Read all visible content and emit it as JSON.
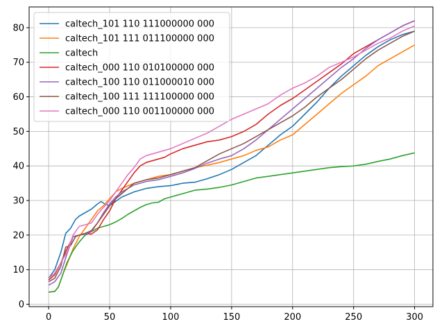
{
  "chart_data": {
    "type": "line",
    "title": "",
    "xlabel": "",
    "ylabel": "",
    "xlim": [
      -16,
      315
    ],
    "ylim": [
      -0.7,
      86
    ],
    "xticks": [
      0,
      50,
      100,
      150,
      200,
      250,
      300
    ],
    "yticks": [
      0,
      10,
      20,
      30,
      40,
      50,
      60,
      70,
      80
    ],
    "grid": true,
    "legend_position": "top-left",
    "series": [
      {
        "name": "caltech_101 110 111000000 000",
        "color": "#1f77b4",
        "points": [
          [
            0,
            7.5
          ],
          [
            5,
            10
          ],
          [
            10,
            15
          ],
          [
            14,
            20.5
          ],
          [
            18,
            22
          ],
          [
            22,
            24.5
          ],
          [
            25,
            25.5
          ],
          [
            30,
            26.5
          ],
          [
            35,
            27.5
          ],
          [
            40,
            29
          ],
          [
            43,
            29.7
          ],
          [
            46,
            29
          ],
          [
            50,
            28.5
          ],
          [
            60,
            31
          ],
          [
            70,
            32.5
          ],
          [
            80,
            33.5
          ],
          [
            90,
            34
          ],
          [
            100,
            34.3
          ],
          [
            110,
            35
          ],
          [
            120,
            35.3
          ],
          [
            130,
            36.3
          ],
          [
            140,
            37.5
          ],
          [
            150,
            39
          ],
          [
            160,
            41
          ],
          [
            170,
            43
          ],
          [
            180,
            46
          ],
          [
            190,
            49
          ],
          [
            200,
            51.5
          ],
          [
            210,
            55
          ],
          [
            220,
            58.5
          ],
          [
            230,
            62.5
          ],
          [
            240,
            66
          ],
          [
            250,
            69
          ],
          [
            260,
            72
          ],
          [
            270,
            74.5
          ],
          [
            280,
            76.5
          ],
          [
            290,
            78
          ],
          [
            300,
            79
          ]
        ]
      },
      {
        "name": "caltech_101 111 011100000 000",
        "color": "#ff7f0e",
        "points": [
          [
            0,
            3.5
          ],
          [
            5,
            3.7
          ],
          [
            8,
            5
          ],
          [
            12,
            9
          ],
          [
            15,
            11.5
          ],
          [
            20,
            16
          ],
          [
            25,
            19.5
          ],
          [
            30,
            22
          ],
          [
            35,
            24.5
          ],
          [
            40,
            27
          ],
          [
            45,
            28.5
          ],
          [
            50,
            30.5
          ],
          [
            55,
            32.5
          ],
          [
            60,
            33.5
          ],
          [
            70,
            35
          ],
          [
            80,
            36
          ],
          [
            90,
            37
          ],
          [
            100,
            37.5
          ],
          [
            110,
            38.5
          ],
          [
            120,
            39.5
          ],
          [
            130,
            40.2
          ],
          [
            140,
            41
          ],
          [
            150,
            42
          ],
          [
            160,
            43
          ],
          [
            170,
            44.5
          ],
          [
            180,
            45.5
          ],
          [
            190,
            47.5
          ],
          [
            200,
            49
          ],
          [
            210,
            52
          ],
          [
            220,
            55
          ],
          [
            230,
            58
          ],
          [
            240,
            61
          ],
          [
            250,
            63.5
          ],
          [
            260,
            66
          ],
          [
            270,
            69
          ],
          [
            280,
            71
          ],
          [
            290,
            73
          ],
          [
            300,
            75
          ]
        ]
      },
      {
        "name": "caltech",
        "color": "#2ca02c",
        "points": [
          [
            0,
            3.5
          ],
          [
            5,
            3.7
          ],
          [
            8,
            5
          ],
          [
            12,
            9
          ],
          [
            15,
            12
          ],
          [
            20,
            15.5
          ],
          [
            25,
            18
          ],
          [
            30,
            20
          ],
          [
            35,
            21
          ],
          [
            40,
            22
          ],
          [
            45,
            22.5
          ],
          [
            50,
            23
          ],
          [
            55,
            23.8
          ],
          [
            60,
            24.8
          ],
          [
            65,
            26
          ],
          [
            70,
            27
          ],
          [
            75,
            28
          ],
          [
            80,
            28.8
          ],
          [
            85,
            29.3
          ],
          [
            90,
            29.5
          ],
          [
            95,
            30.5
          ],
          [
            100,
            31
          ],
          [
            110,
            32
          ],
          [
            120,
            33
          ],
          [
            130,
            33.3
          ],
          [
            140,
            33.8
          ],
          [
            150,
            34.5
          ],
          [
            160,
            35.5
          ],
          [
            170,
            36.5
          ],
          [
            180,
            37
          ],
          [
            190,
            37.5
          ],
          [
            200,
            38
          ],
          [
            210,
            38.5
          ],
          [
            220,
            39
          ],
          [
            230,
            39.5
          ],
          [
            240,
            39.8
          ],
          [
            250,
            40
          ],
          [
            260,
            40.5
          ],
          [
            270,
            41.3
          ],
          [
            280,
            42
          ],
          [
            290,
            43
          ],
          [
            300,
            43.8
          ]
        ]
      },
      {
        "name": "caltech_000 110 010100000 000",
        "color": "#d62728",
        "points": [
          [
            0,
            7
          ],
          [
            5,
            8.5
          ],
          [
            10,
            12
          ],
          [
            15,
            16
          ],
          [
            20,
            19.5
          ],
          [
            25,
            20
          ],
          [
            30,
            20.5
          ],
          [
            35,
            20.3
          ],
          [
            40,
            21.5
          ],
          [
            45,
            24.5
          ],
          [
            50,
            27
          ],
          [
            55,
            30.5
          ],
          [
            60,
            33
          ],
          [
            65,
            35.5
          ],
          [
            70,
            38
          ],
          [
            75,
            40
          ],
          [
            80,
            41
          ],
          [
            85,
            41.5
          ],
          [
            90,
            42
          ],
          [
            95,
            42.5
          ],
          [
            100,
            43.5
          ],
          [
            110,
            45
          ],
          [
            120,
            46
          ],
          [
            130,
            47
          ],
          [
            140,
            47.5
          ],
          [
            150,
            48.5
          ],
          [
            160,
            50
          ],
          [
            170,
            52
          ],
          [
            180,
            55
          ],
          [
            190,
            57.5
          ],
          [
            200,
            59.5
          ],
          [
            210,
            62
          ],
          [
            220,
            64.5
          ],
          [
            230,
            67
          ],
          [
            240,
            69.5
          ],
          [
            250,
            72.5
          ],
          [
            260,
            74.5
          ],
          [
            270,
            76.5
          ],
          [
            280,
            78.5
          ],
          [
            290,
            80.5
          ],
          [
            300,
            82
          ]
        ]
      },
      {
        "name": "caltech_100 110 011000010 000",
        "color": "#9467bd",
        "points": [
          [
            0,
            5.5
          ],
          [
            5,
            6.5
          ],
          [
            10,
            9
          ],
          [
            15,
            14.5
          ],
          [
            20,
            19.5
          ],
          [
            25,
            20
          ],
          [
            30,
            20.3
          ],
          [
            35,
            21
          ],
          [
            40,
            23.5
          ],
          [
            45,
            26.5
          ],
          [
            50,
            29
          ],
          [
            55,
            31
          ],
          [
            60,
            32.5
          ],
          [
            70,
            34.5
          ],
          [
            80,
            35.5
          ],
          [
            90,
            36
          ],
          [
            100,
            37
          ],
          [
            110,
            38
          ],
          [
            120,
            39.3
          ],
          [
            130,
            40.8
          ],
          [
            140,
            42
          ],
          [
            150,
            43
          ],
          [
            160,
            45
          ],
          [
            170,
            47.5
          ],
          [
            180,
            50.5
          ],
          [
            190,
            53.5
          ],
          [
            200,
            56.5
          ],
          [
            210,
            59.5
          ],
          [
            220,
            62.5
          ],
          [
            230,
            65.5
          ],
          [
            240,
            68.5
          ],
          [
            250,
            71
          ],
          [
            260,
            74
          ],
          [
            270,
            76.5
          ],
          [
            280,
            78.5
          ],
          [
            290,
            80.5
          ],
          [
            300,
            82
          ]
        ]
      },
      {
        "name": "caltech_100 111 111100000 000",
        "color": "#8c564b",
        "points": [
          [
            0,
            6.5
          ],
          [
            5,
            7.5
          ],
          [
            10,
            11
          ],
          [
            14,
            16.5
          ],
          [
            18,
            17
          ],
          [
            22,
            19.5
          ],
          [
            25,
            20
          ],
          [
            30,
            20.5
          ],
          [
            35,
            21.3
          ],
          [
            40,
            23.5
          ],
          [
            45,
            26
          ],
          [
            50,
            28.5
          ],
          [
            55,
            30.5
          ],
          [
            60,
            32
          ],
          [
            65,
            33.5
          ],
          [
            70,
            35
          ],
          [
            80,
            36
          ],
          [
            90,
            36.5
          ],
          [
            100,
            37.5
          ],
          [
            110,
            38.5
          ],
          [
            120,
            39.5
          ],
          [
            130,
            41.5
          ],
          [
            140,
            43.5
          ],
          [
            150,
            45
          ],
          [
            160,
            46.5
          ],
          [
            170,
            48.5
          ],
          [
            180,
            50.5
          ],
          [
            190,
            52.5
          ],
          [
            200,
            54.5
          ],
          [
            210,
            57
          ],
          [
            220,
            60
          ],
          [
            230,
            62.5
          ],
          [
            240,
            65
          ],
          [
            250,
            68
          ],
          [
            260,
            71
          ],
          [
            270,
            73.5
          ],
          [
            280,
            75.5
          ],
          [
            290,
            77.5
          ],
          [
            300,
            79
          ]
        ]
      },
      {
        "name": "caltech_000 110 001100000 000",
        "color": "#e377c2",
        "points": [
          [
            0,
            7.5
          ],
          [
            5,
            9
          ],
          [
            10,
            12
          ],
          [
            15,
            15
          ],
          [
            20,
            20
          ],
          [
            25,
            22.5
          ],
          [
            30,
            23
          ],
          [
            35,
            23.5
          ],
          [
            40,
            26
          ],
          [
            45,
            28
          ],
          [
            50,
            30
          ],
          [
            55,
            32.5
          ],
          [
            60,
            35
          ],
          [
            65,
            37.5
          ],
          [
            70,
            39.5
          ],
          [
            75,
            42
          ],
          [
            80,
            43
          ],
          [
            90,
            44
          ],
          [
            100,
            45
          ],
          [
            110,
            46.5
          ],
          [
            120,
            48
          ],
          [
            130,
            49.5
          ],
          [
            140,
            51.5
          ],
          [
            150,
            53.5
          ],
          [
            160,
            55
          ],
          [
            170,
            56.5
          ],
          [
            180,
            58
          ],
          [
            190,
            60.5
          ],
          [
            200,
            62.5
          ],
          [
            210,
            64
          ],
          [
            220,
            66
          ],
          [
            230,
            68.5
          ],
          [
            240,
            70
          ],
          [
            250,
            71.5
          ],
          [
            260,
            73.5
          ],
          [
            270,
            75.5
          ],
          [
            280,
            77
          ],
          [
            290,
            79
          ],
          [
            300,
            80.5
          ]
        ]
      }
    ]
  }
}
